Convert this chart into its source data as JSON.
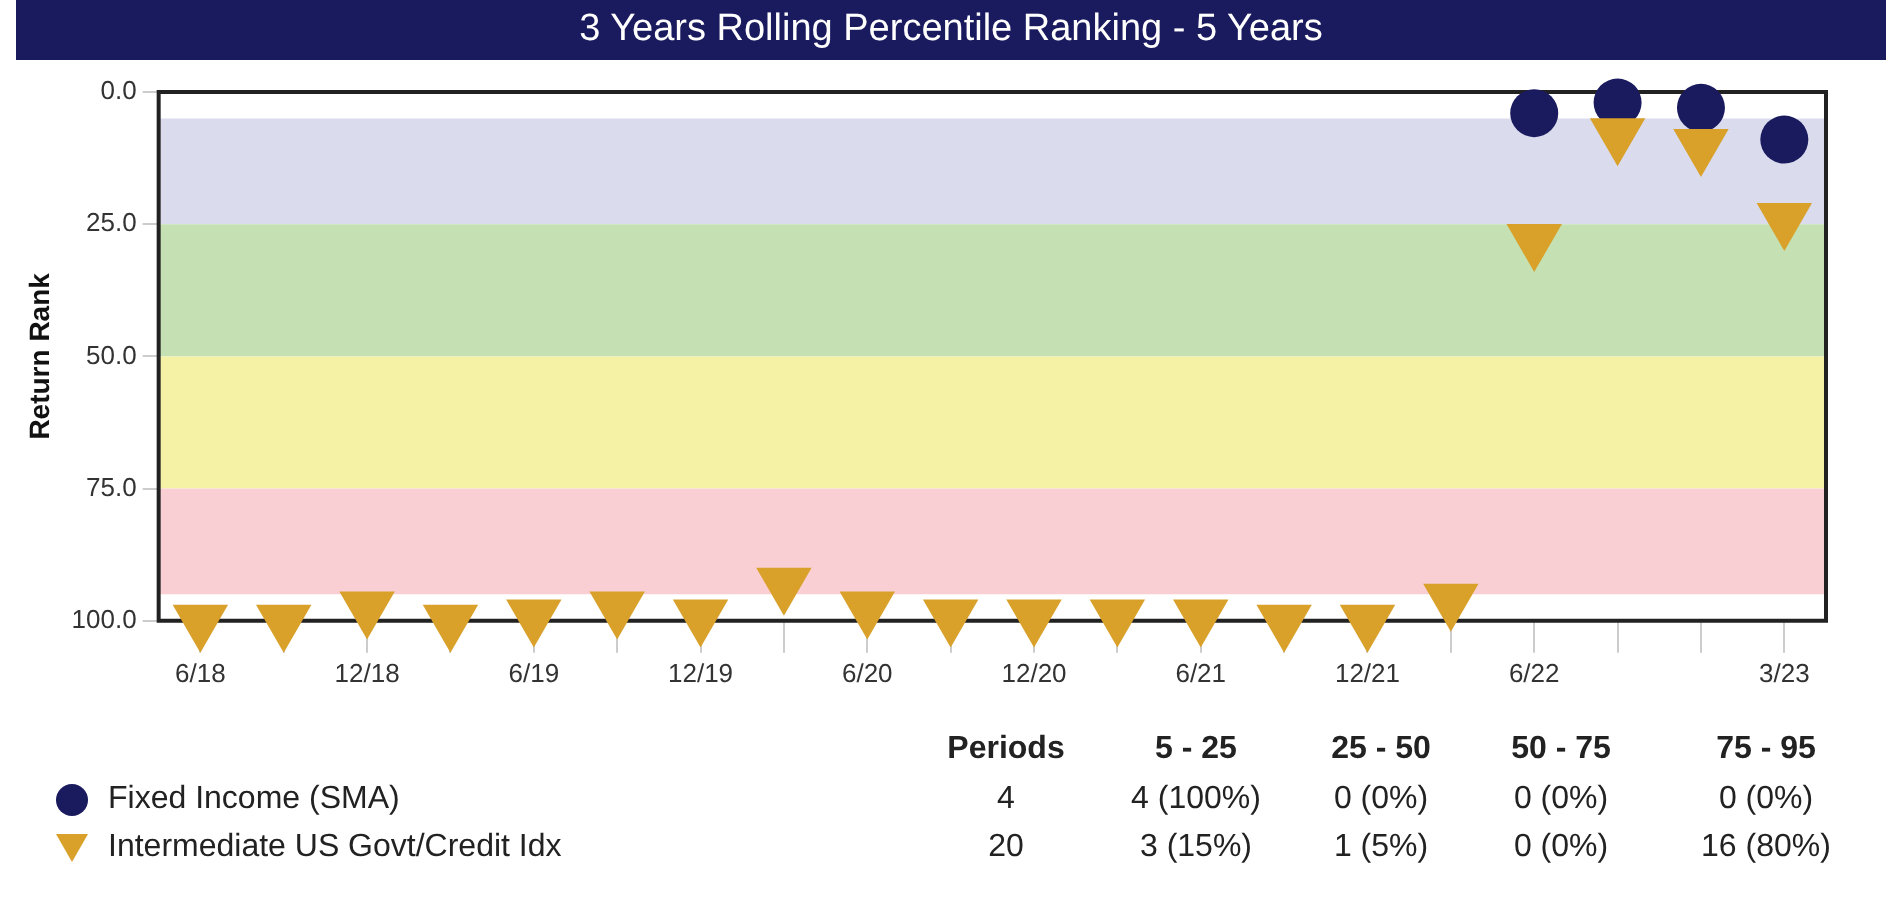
{
  "chart_data": {
    "type": "scatter",
    "title": "3 Years Rolling Percentile Ranking - 5 Years",
    "ylabel": "Return Rank",
    "categories": [
      "6/18",
      null,
      "12/18",
      null,
      "6/19",
      null,
      "12/19",
      null,
      "6/20",
      null,
      "12/20",
      null,
      "6/21",
      null,
      "12/21",
      null,
      "6/22",
      null,
      null,
      "3/23"
    ],
    "series": [
      {
        "name": "Fixed Income (SMA)",
        "color": "#1a1a5e",
        "marker": "circle",
        "values": [
          null,
          null,
          null,
          null,
          null,
          null,
          null,
          null,
          null,
          null,
          null,
          null,
          null,
          null,
          null,
          null,
          4,
          2,
          3,
          9
        ]
      },
      {
        "name": "Intermediate US Govt/Credit Idx",
        "color": "#d9a12a",
        "marker": "triangle",
        "values": [
          100,
          100,
          97.5,
          100,
          99,
          97.5,
          99,
          93,
          97.5,
          99,
          99,
          99,
          99,
          100,
          100,
          96,
          28,
          8,
          10,
          24
        ]
      }
    ],
    "ylim": [
      100,
      0
    ],
    "yticks": [
      {
        "value": 0,
        "label": "0.0"
      },
      {
        "value": 25,
        "label": "25.0"
      },
      {
        "value": 50,
        "label": "50.0"
      },
      {
        "value": 75,
        "label": "75.0"
      },
      {
        "value": 100,
        "label": "100.0"
      }
    ],
    "bands": [
      {
        "axis": "y",
        "from": 5,
        "to": 25,
        "color": "#dadcee"
      },
      {
        "axis": "y",
        "from": 25,
        "to": 50,
        "color": "#c5e1b3"
      },
      {
        "axis": "y",
        "from": 50,
        "to": 75,
        "color": "#f5f2a6"
      },
      {
        "axis": "y",
        "from": 75,
        "to": 95,
        "color": "#f9cfd3"
      }
    ],
    "grid": false,
    "legend": "bottom",
    "annotations": [
      "Periods",
      "5 - 25",
      "25 - 50",
      "50 - 75",
      "75 - 95",
      "4",
      "4 (100%)",
      "0  (0%)",
      "0  (0%)",
      "0  (0%)",
      "20",
      "3 (15%)",
      "1  (5%)",
      "0  (0%)",
      "16 (80%)"
    ]
  }
}
